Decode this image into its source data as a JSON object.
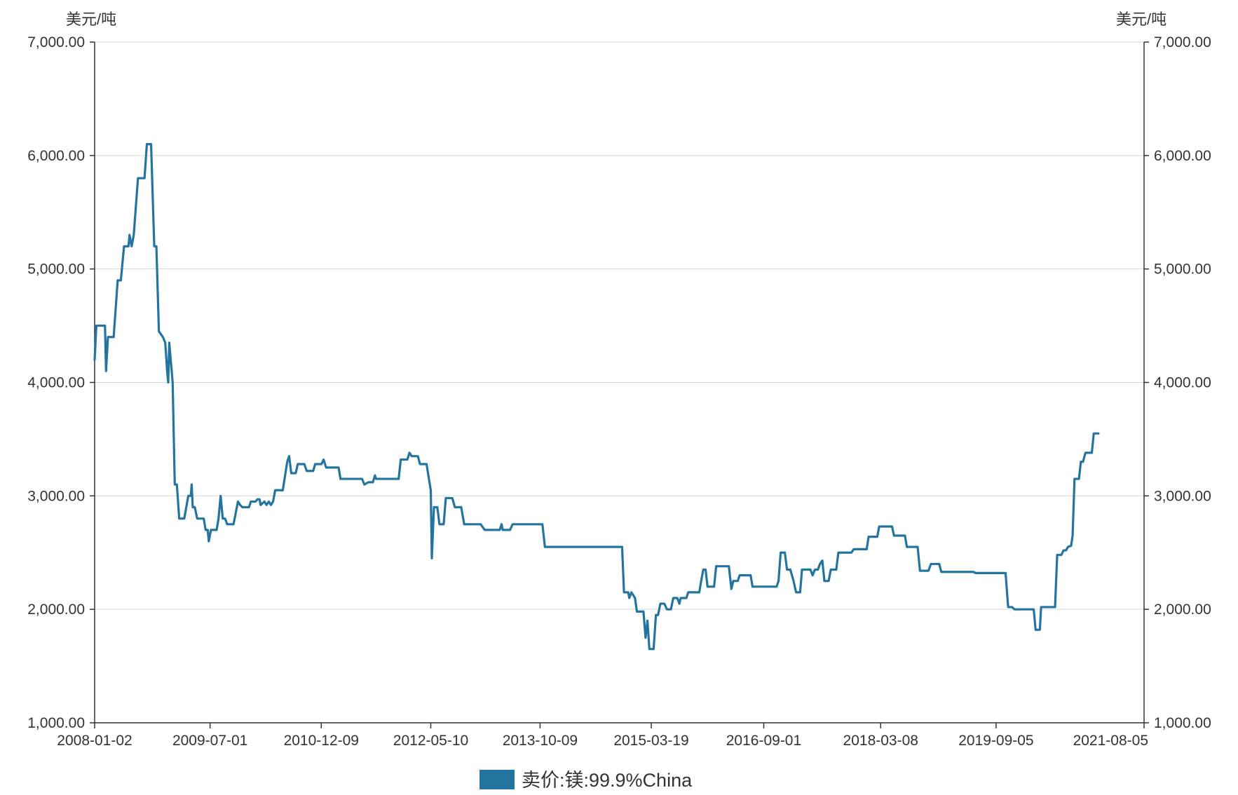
{
  "chart_data": {
    "type": "line",
    "left_unit": "美元/吨",
    "right_unit": "美元/吨",
    "x_tick_labels": [
      "2008-01-02",
      "2009-07-01",
      "2010-12-09",
      "2012-05-10",
      "2013-10-09",
      "2015-03-19",
      "2016-09-01",
      "2018-03-08",
      "2019-09-05",
      "2021-08-05"
    ],
    "y_tick_labels": [
      "1,000.00",
      "2,000.00",
      "3,000.00",
      "4,000.00",
      "5,000.00",
      "6,000.00",
      "7,000.00"
    ],
    "ylim": [
      1000,
      7000
    ],
    "grid": true,
    "legend_position": "bottom-center",
    "series": [
      {
        "name": "卖价:镁:99.9%China",
        "color": "#2474a0",
        "points": [
          [
            "2008-01-02",
            4200
          ],
          [
            "2008-01-10",
            4500
          ],
          [
            "2008-02-20",
            4500
          ],
          [
            "2008-02-25",
            4100
          ],
          [
            "2008-03-05",
            4400
          ],
          [
            "2008-04-01",
            4400
          ],
          [
            "2008-04-20",
            4900
          ],
          [
            "2008-05-05",
            4900
          ],
          [
            "2008-05-20",
            5200
          ],
          [
            "2008-06-10",
            5200
          ],
          [
            "2008-06-15",
            5300
          ],
          [
            "2008-06-25",
            5200
          ],
          [
            "2008-07-05",
            5300
          ],
          [
            "2008-07-25",
            5800
          ],
          [
            "2008-08-25",
            5800
          ],
          [
            "2008-09-05",
            6100
          ],
          [
            "2008-09-25",
            6100
          ],
          [
            "2008-10-10",
            5200
          ],
          [
            "2008-10-20",
            5200
          ],
          [
            "2008-11-01",
            4450
          ],
          [
            "2008-11-20",
            4400
          ],
          [
            "2008-12-01",
            4350
          ],
          [
            "2008-12-10",
            4100
          ],
          [
            "2008-12-15",
            4000
          ],
          [
            "2008-12-20",
            4350
          ],
          [
            "2009-01-05",
            4000
          ],
          [
            "2009-01-15",
            3100
          ],
          [
            "2009-01-25",
            3100
          ],
          [
            "2009-02-05",
            2800
          ],
          [
            "2009-03-01",
            2800
          ],
          [
            "2009-03-20",
            3000
          ],
          [
            "2009-04-01",
            3000
          ],
          [
            "2009-04-05",
            3100
          ],
          [
            "2009-04-10",
            2900
          ],
          [
            "2009-04-20",
            2900
          ],
          [
            "2009-05-01",
            2800
          ],
          [
            "2009-06-01",
            2800
          ],
          [
            "2009-06-10",
            2700
          ],
          [
            "2009-06-20",
            2700
          ],
          [
            "2009-06-25",
            2600
          ],
          [
            "2009-07-05",
            2700
          ],
          [
            "2009-08-01",
            2700
          ],
          [
            "2009-08-10",
            2800
          ],
          [
            "2009-08-20",
            3000
          ],
          [
            "2009-08-30",
            2800
          ],
          [
            "2009-09-10",
            2800
          ],
          [
            "2009-09-20",
            2750
          ],
          [
            "2009-10-20",
            2750
          ],
          [
            "2009-11-10",
            2950
          ],
          [
            "2009-11-20",
            2920
          ],
          [
            "2009-12-01",
            2900
          ],
          [
            "2010-01-01",
            2900
          ],
          [
            "2010-01-10",
            2950
          ],
          [
            "2010-02-01",
            2950
          ],
          [
            "2010-02-10",
            2970
          ],
          [
            "2010-02-20",
            2970
          ],
          [
            "2010-02-25",
            2920
          ],
          [
            "2010-03-15",
            2950
          ],
          [
            "2010-03-25",
            2920
          ],
          [
            "2010-04-05",
            2950
          ],
          [
            "2010-04-15",
            2920
          ],
          [
            "2010-04-25",
            2950
          ],
          [
            "2010-05-05",
            3050
          ],
          [
            "2010-05-15",
            3050
          ],
          [
            "2010-06-10",
            3050
          ],
          [
            "2010-07-01",
            3300
          ],
          [
            "2010-07-10",
            3350
          ],
          [
            "2010-07-20",
            3200
          ],
          [
            "2010-08-10",
            3200
          ],
          [
            "2010-08-20",
            3280
          ],
          [
            "2010-09-20",
            3280
          ],
          [
            "2010-10-01",
            3220
          ],
          [
            "2010-11-01",
            3220
          ],
          [
            "2010-11-10",
            3280
          ],
          [
            "2010-12-10",
            3280
          ],
          [
            "2010-12-20",
            3320
          ],
          [
            "2011-01-01",
            3250
          ],
          [
            "2011-03-01",
            3250
          ],
          [
            "2011-03-10",
            3150
          ],
          [
            "2011-06-20",
            3150
          ],
          [
            "2011-07-01",
            3100
          ],
          [
            "2011-07-20",
            3120
          ],
          [
            "2011-08-10",
            3120
          ],
          [
            "2011-08-20",
            3180
          ],
          [
            "2011-08-25",
            3150
          ],
          [
            "2011-12-10",
            3150
          ],
          [
            "2011-12-20",
            3320
          ],
          [
            "2012-01-20",
            3320
          ],
          [
            "2012-01-30",
            3380
          ],
          [
            "2012-02-10",
            3350
          ],
          [
            "2012-03-10",
            3350
          ],
          [
            "2012-03-20",
            3280
          ],
          [
            "2012-04-20",
            3280
          ],
          [
            "2012-05-10",
            3050
          ],
          [
            "2012-05-15",
            2450
          ],
          [
            "2012-05-25",
            2900
          ],
          [
            "2012-06-10",
            2900
          ],
          [
            "2012-06-20",
            2750
          ],
          [
            "2012-07-10",
            2750
          ],
          [
            "2012-07-20",
            2980
          ],
          [
            "2012-08-20",
            2980
          ],
          [
            "2012-09-01",
            2900
          ],
          [
            "2012-10-01",
            2900
          ],
          [
            "2012-10-15",
            2750
          ],
          [
            "2012-12-20",
            2750
          ],
          [
            "2013-01-01",
            2750
          ],
          [
            "2013-01-20",
            2700
          ],
          [
            "2013-04-01",
            2700
          ],
          [
            "2013-04-10",
            2750
          ],
          [
            "2013-04-15",
            2700
          ],
          [
            "2013-05-20",
            2700
          ],
          [
            "2013-06-01",
            2750
          ],
          [
            "2013-10-20",
            2750
          ],
          [
            "2013-11-01",
            2550
          ],
          [
            "2014-11-01",
            2550
          ],
          [
            "2014-11-10",
            2150
          ],
          [
            "2014-11-30",
            2150
          ],
          [
            "2014-12-05",
            2100
          ],
          [
            "2014-12-15",
            2150
          ],
          [
            "2015-01-01",
            2100
          ],
          [
            "2015-01-10",
            1980
          ],
          [
            "2015-02-10",
            1980
          ],
          [
            "2015-02-20",
            1750
          ],
          [
            "2015-03-01",
            1900
          ],
          [
            "2015-03-10",
            1650
          ],
          [
            "2015-03-30",
            1650
          ],
          [
            "2015-04-10",
            1950
          ],
          [
            "2015-04-20",
            1950
          ],
          [
            "2015-05-01",
            2050
          ],
          [
            "2015-05-20",
            2050
          ],
          [
            "2015-06-01",
            2000
          ],
          [
            "2015-06-20",
            2000
          ],
          [
            "2015-07-01",
            2100
          ],
          [
            "2015-07-20",
            2100
          ],
          [
            "2015-07-30",
            2050
          ],
          [
            "2015-08-05",
            2100
          ],
          [
            "2015-09-01",
            2100
          ],
          [
            "2015-09-10",
            2150
          ],
          [
            "2015-11-01",
            2150
          ],
          [
            "2015-11-10",
            2250
          ],
          [
            "2015-11-20",
            2350
          ],
          [
            "2015-12-01",
            2350
          ],
          [
            "2015-12-10",
            2200
          ],
          [
            "2016-01-10",
            2200
          ],
          [
            "2016-01-20",
            2380
          ],
          [
            "2016-03-20",
            2380
          ],
          [
            "2016-04-01",
            2180
          ],
          [
            "2016-04-10",
            2250
          ],
          [
            "2016-05-01",
            2250
          ],
          [
            "2016-05-10",
            2300
          ],
          [
            "2016-07-01",
            2300
          ],
          [
            "2016-07-10",
            2200
          ],
          [
            "2016-11-01",
            2200
          ],
          [
            "2016-11-10",
            2250
          ],
          [
            "2016-11-20",
            2500
          ],
          [
            "2016-12-10",
            2500
          ],
          [
            "2016-12-20",
            2350
          ],
          [
            "2017-01-05",
            2350
          ],
          [
            "2017-01-20",
            2250
          ],
          [
            "2017-02-01",
            2150
          ],
          [
            "2017-02-20",
            2150
          ],
          [
            "2017-03-01",
            2350
          ],
          [
            "2017-04-10",
            2350
          ],
          [
            "2017-04-20",
            2300
          ],
          [
            "2017-05-01",
            2350
          ],
          [
            "2017-05-15",
            2350
          ],
          [
            "2017-05-25",
            2400
          ],
          [
            "2017-06-05",
            2430
          ],
          [
            "2017-06-15",
            2250
          ],
          [
            "2017-07-05",
            2250
          ],
          [
            "2017-07-15",
            2350
          ],
          [
            "2017-08-10",
            2350
          ],
          [
            "2017-08-20",
            2500
          ],
          [
            "2017-10-20",
            2500
          ],
          [
            "2017-11-01",
            2530
          ],
          [
            "2018-01-01",
            2530
          ],
          [
            "2018-01-10",
            2640
          ],
          [
            "2018-02-20",
            2640
          ],
          [
            "2018-03-01",
            2730
          ],
          [
            "2018-05-01",
            2730
          ],
          [
            "2018-05-10",
            2650
          ],
          [
            "2018-07-01",
            2650
          ],
          [
            "2018-07-10",
            2550
          ],
          [
            "2018-08-30",
            2550
          ],
          [
            "2018-09-10",
            2340
          ],
          [
            "2018-10-20",
            2340
          ],
          [
            "2018-11-01",
            2400
          ],
          [
            "2018-12-10",
            2400
          ],
          [
            "2018-12-20",
            2330
          ],
          [
            "2019-05-20",
            2330
          ],
          [
            "2019-06-01",
            2320
          ],
          [
            "2019-10-20",
            2320
          ],
          [
            "2019-11-01",
            2020
          ],
          [
            "2019-11-20",
            2020
          ],
          [
            "2019-12-01",
            2000
          ],
          [
            "2020-03-01",
            2000
          ],
          [
            "2020-03-10",
            1820
          ],
          [
            "2020-03-30",
            1820
          ],
          [
            "2020-04-05",
            2020
          ],
          [
            "2020-06-10",
            2020
          ],
          [
            "2020-06-20",
            2480
          ],
          [
            "2020-07-10",
            2480
          ],
          [
            "2020-07-20",
            2520
          ],
          [
            "2020-08-01",
            2520
          ],
          [
            "2020-08-10",
            2550
          ],
          [
            "2020-08-25",
            2560
          ],
          [
            "2020-09-01",
            2650
          ],
          [
            "2020-09-10",
            3150
          ],
          [
            "2020-10-01",
            3150
          ],
          [
            "2020-10-10",
            3300
          ],
          [
            "2020-10-20",
            3300
          ],
          [
            "2020-11-01",
            3380
          ],
          [
            "2020-12-01",
            3380
          ],
          [
            "2020-12-10",
            3550
          ],
          [
            "2021-01-01",
            3550
          ]
        ]
      }
    ]
  }
}
